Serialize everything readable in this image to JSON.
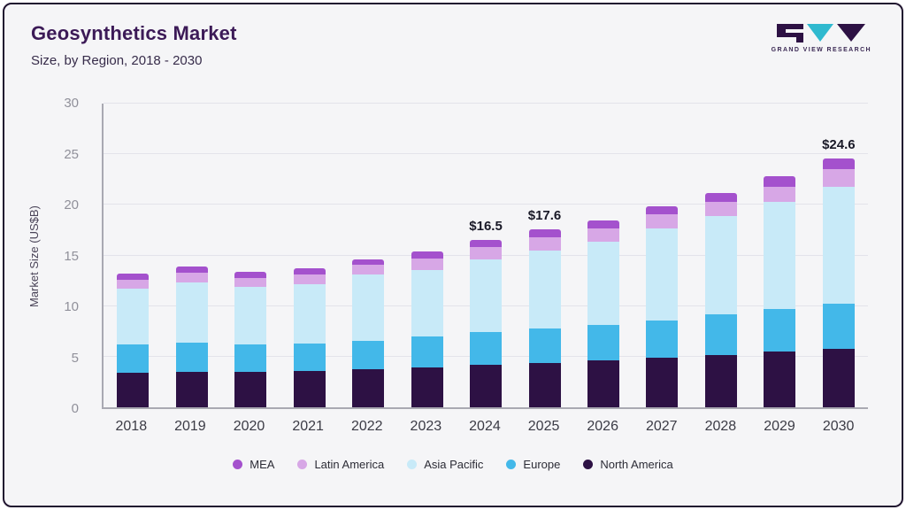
{
  "header": {
    "title": "Geosynthetics Market",
    "subtitle": "Size, by Region, 2018 - 2030",
    "logo_text": "GRAND VIEW RESEARCH"
  },
  "chart_data": {
    "type": "bar",
    "stacked": true,
    "title": "Geosynthetics Market",
    "subtitle": "Size, by Region, 2018 - 2030",
    "ylabel": "Market Size (US$B)",
    "ylim": [
      0,
      30
    ],
    "yticks": [
      0,
      5,
      10,
      15,
      20,
      25,
      30
    ],
    "grid": true,
    "legend_position": "bottom",
    "categories": [
      "2018",
      "2019",
      "2020",
      "2021",
      "2022",
      "2023",
      "2024",
      "2025",
      "2026",
      "2027",
      "2028",
      "2029",
      "2030"
    ],
    "series": [
      {
        "name": "North America",
        "color": "#2d1144",
        "values": [
          3.4,
          3.5,
          3.5,
          3.6,
          3.8,
          3.9,
          4.2,
          4.4,
          4.6,
          4.9,
          5.2,
          5.5,
          5.8
        ]
      },
      {
        "name": "Europe",
        "color": "#43b8e9",
        "values": [
          2.8,
          2.9,
          2.7,
          2.7,
          2.8,
          3.1,
          3.2,
          3.4,
          3.5,
          3.7,
          4.0,
          4.2,
          4.4
        ]
      },
      {
        "name": "Asia Pacific",
        "color": "#c8eaf8",
        "values": [
          5.5,
          5.9,
          5.7,
          5.9,
          6.5,
          6.6,
          7.2,
          7.7,
          8.3,
          9.1,
          9.7,
          10.6,
          11.6
        ]
      },
      {
        "name": "Latin America",
        "color": "#d7a7e6",
        "values": [
          0.9,
          1.0,
          0.9,
          0.9,
          1.0,
          1.1,
          1.2,
          1.3,
          1.3,
          1.4,
          1.4,
          1.5,
          1.7
        ]
      },
      {
        "name": "MEA",
        "color": "#a451cd",
        "values": [
          0.6,
          0.6,
          0.6,
          0.6,
          0.5,
          0.7,
          0.7,
          0.8,
          0.8,
          0.8,
          0.9,
          1.0,
          1.1
        ]
      }
    ],
    "legend_order": [
      "MEA",
      "Latin America",
      "Asia Pacific",
      "Europe",
      "North America"
    ],
    "annotations": [
      {
        "category": "2024",
        "text": "$16.5"
      },
      {
        "category": "2025",
        "text": "$17.6"
      },
      {
        "category": "2030",
        "text": "$24.6"
      }
    ]
  }
}
